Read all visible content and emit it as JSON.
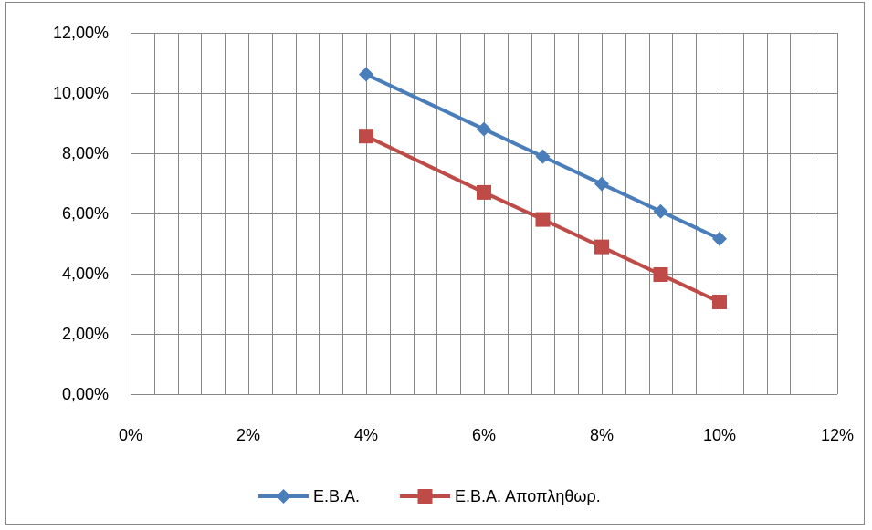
{
  "chart_data": {
    "type": "scatter",
    "title": "",
    "xlabel": "",
    "ylabel": "",
    "xlim": [
      0,
      0.12
    ],
    "ylim": [
      0,
      0.12
    ],
    "x_ticks": [
      0,
      0.02,
      0.04,
      0.06,
      0.08,
      0.1,
      0.12
    ],
    "x_tick_labels": [
      "0%",
      "2%",
      "4%",
      "6%",
      "8%",
      "10%",
      "12%"
    ],
    "y_ticks": [
      0,
      0.02,
      0.04,
      0.06,
      0.08,
      0.1,
      0.12
    ],
    "y_tick_labels": [
      "0,00%",
      "2,00%",
      "4,00%",
      "6,00%",
      "8,00%",
      "10,00%",
      "12,00%"
    ],
    "grid": true,
    "legend_position": "bottom",
    "series": [
      {
        "name": "Ε.Β.Α.",
        "color": "#4a7ebb",
        "marker": "diamond",
        "x": [
          0.04,
          0.06,
          0.07,
          0.08,
          0.09,
          0.1
        ],
        "y": [
          0.1062,
          0.088,
          0.0789,
          0.0698,
          0.0607,
          0.0516
        ]
      },
      {
        "name": "Ε.Β.Α. Αποπληθωρ.",
        "color": "#be4b48",
        "marker": "square",
        "x": [
          0.04,
          0.06,
          0.07,
          0.08,
          0.09,
          0.1
        ],
        "y": [
          0.0857,
          0.067,
          0.058,
          0.0489,
          0.0397,
          0.0306
        ]
      }
    ]
  }
}
